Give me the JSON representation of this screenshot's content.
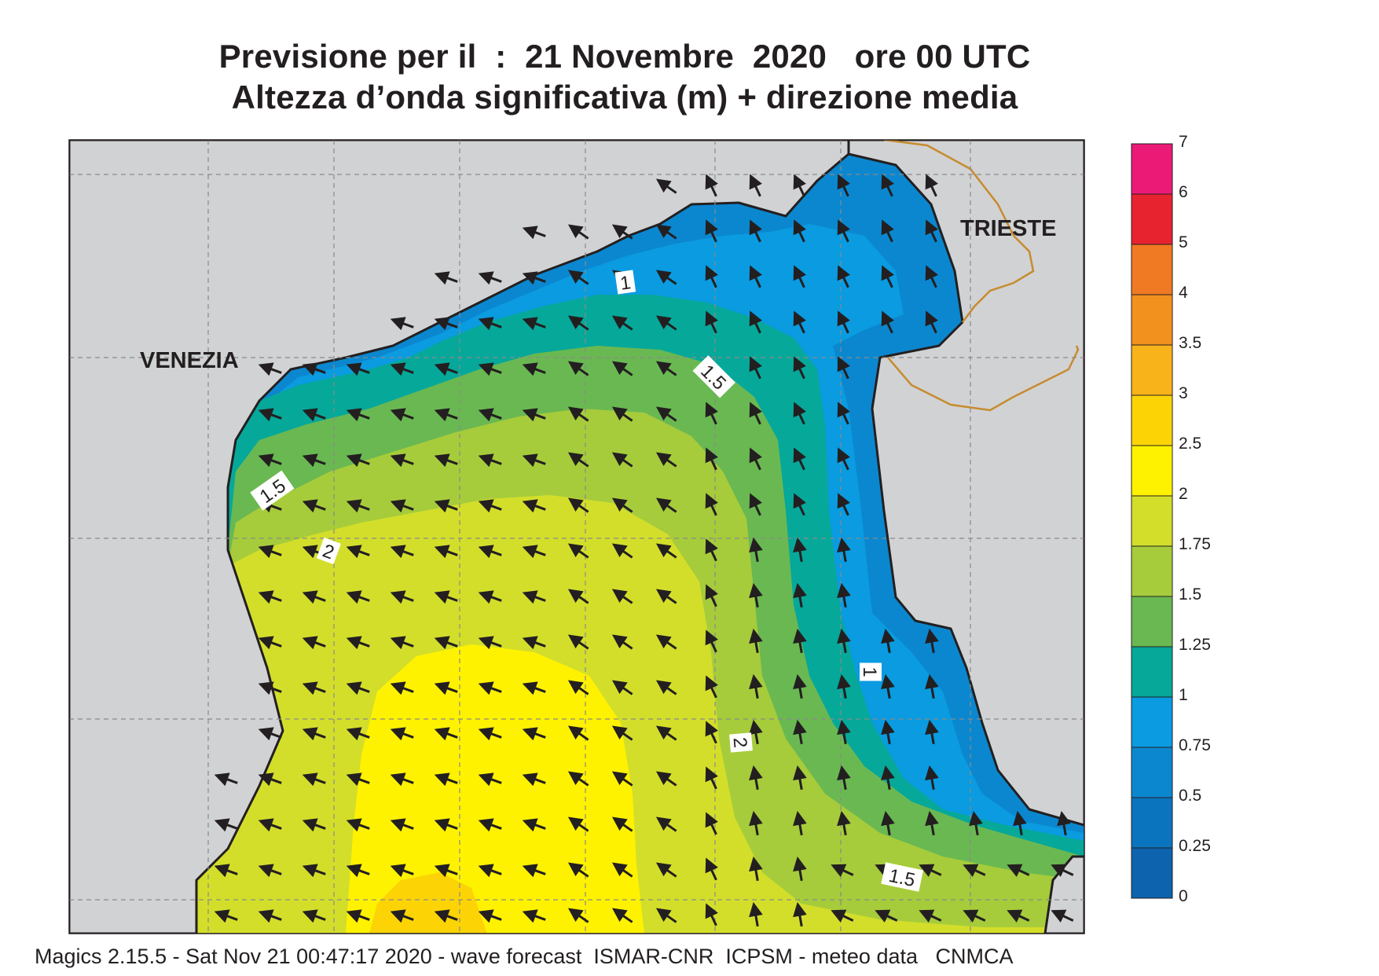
{
  "title": {
    "line1": "Previsione per il  :  21 Novembre  2020   ore 00 UTC",
    "line2": "Altezza d’onda significativa (m) + direzione media"
  },
  "cities": [
    {
      "name": "VENEZIA"
    },
    {
      "name": "TRIESTE"
    }
  ],
  "contour_labels": [
    "1",
    "1.5",
    "1.5",
    "2",
    "1",
    "2",
    "1.5"
  ],
  "colorbar": {
    "ticks": [
      "7",
      "6",
      "5",
      "4",
      "3.5",
      "3",
      "2.5",
      "2",
      "1.75",
      "1.5",
      "1.25",
      "1",
      "0.75",
      "0.5",
      "0.25",
      "0"
    ],
    "colors": [
      "#ec1a77",
      "#e82330",
      "#f07a24",
      "#f3911e",
      "#f8b31b",
      "#fcd406",
      "#fff200",
      "#d3de2b",
      "#a6cc3b",
      "#6ab852",
      "#06a89a",
      "#0a9be0",
      "#0b87cf",
      "#0b74be",
      "#0d63ae"
    ]
  },
  "colors": {
    "land": "#d1d2d4",
    "coast": "#231f20",
    "border": "#c68c2e",
    "arrow": "#231f20"
  },
  "footer": "Magics 2.15.5 - Sat Nov 21 00:47:17 2020 - wave forecast  ISMAR-CNR  ICPSM - meteo data   CNMCA"
}
